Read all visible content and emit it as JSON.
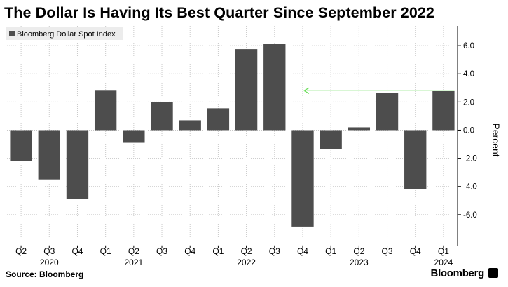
{
  "title": "The Dollar Is Having Its Best Quarter Since September 2022",
  "source": "Source: Bloomberg",
  "brand": "Bloomberg",
  "chart_data": {
    "type": "bar",
    "legend": "Bloomberg Dollar Spot Index",
    "legend_position": "top-left",
    "ylabel": "Percent",
    "ylim": [
      -8.2,
      7.4
    ],
    "y_ticks": [
      -6,
      -4,
      -2,
      0,
      2,
      4,
      6
    ],
    "y_tick_labels": [
      "-6.0",
      "-4.0",
      "-2.0",
      "0.0",
      "2.0",
      "4.0",
      "6.0"
    ],
    "grid": true,
    "bar_color": "#4d4d4d",
    "annotation_color": "#66dd55",
    "categories": [
      "Q2",
      "Q3",
      "Q4",
      "Q1",
      "Q2",
      "Q3",
      "Q4",
      "Q1",
      "Q2",
      "Q3",
      "Q4",
      "Q1",
      "Q2",
      "Q3",
      "Q4",
      "Q1"
    ],
    "years": [
      {
        "label": "2020",
        "category_index": 1
      },
      {
        "label": "2021",
        "category_index": 4
      },
      {
        "label": "2022",
        "category_index": 8
      },
      {
        "label": "2023",
        "category_index": 12
      },
      {
        "label": "2024",
        "category_index": 15
      }
    ],
    "values": [
      -2.2,
      -3.5,
      -4.9,
      2.85,
      -0.9,
      2.0,
      0.7,
      1.55,
      5.75,
      6.15,
      -6.85,
      -1.35,
      0.2,
      2.65,
      -4.2,
      2.8
    ],
    "annotation": {
      "type": "arrow",
      "y": 2.8,
      "from_category_index": 15,
      "to_category_index": 10
    }
  }
}
